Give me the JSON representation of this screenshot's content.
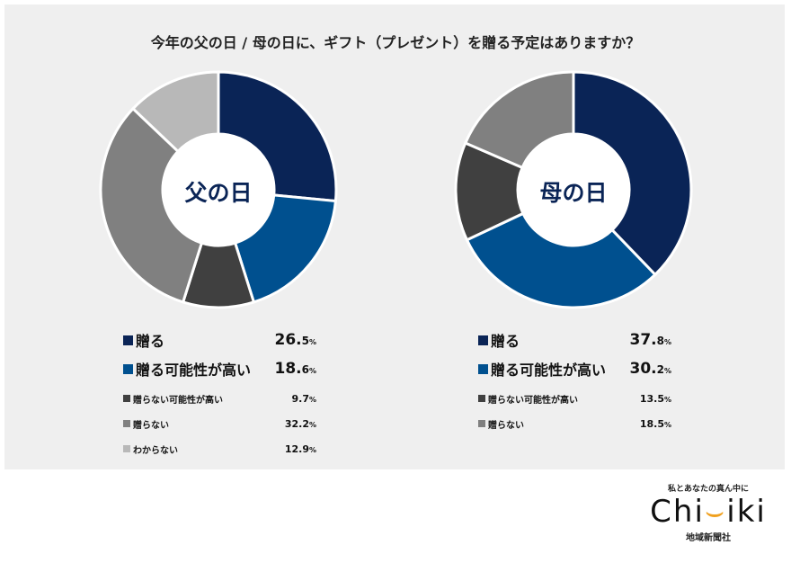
{
  "title": "今年の父の日 / 母の日に、ギフト（プレゼント）を贈る予定はありますか？",
  "chart_data": [
    {
      "type": "pie",
      "center_label": "父の日",
      "unit": "%",
      "slices": [
        {
          "label": "贈る",
          "value": 26.5,
          "color": "#0a2456",
          "emphasis": true
        },
        {
          "label": "贈る可能性が高い",
          "value": 18.6,
          "color": "#00508f",
          "emphasis": true
        },
        {
          "label": "贈らない可能性が高い",
          "value": 9.7,
          "color": "#404040",
          "emphasis": false
        },
        {
          "label": "贈らない",
          "value": 32.2,
          "color": "#808080",
          "emphasis": false
        },
        {
          "label": "わからない",
          "value": 12.9,
          "color": "#b8b8b8",
          "emphasis": false
        }
      ]
    },
    {
      "type": "pie",
      "center_label": "母の日",
      "unit": "%",
      "slices": [
        {
          "label": "贈る",
          "value": 37.8,
          "color": "#0a2456",
          "emphasis": true
        },
        {
          "label": "贈る可能性が高い",
          "value": 30.2,
          "color": "#00508f",
          "emphasis": true
        },
        {
          "label": "贈らない可能性が高い",
          "value": 13.5,
          "color": "#404040",
          "emphasis": false
        },
        {
          "label": "贈らない",
          "value": 18.5,
          "color": "#808080",
          "emphasis": false
        }
      ]
    }
  ],
  "logo": {
    "tagline": "私とあなたの真ん中に",
    "brand": "Chiiki",
    "brand_parts": [
      "Ch",
      "i",
      "",
      "i",
      "ki"
    ],
    "paper": "地域新聞社"
  }
}
